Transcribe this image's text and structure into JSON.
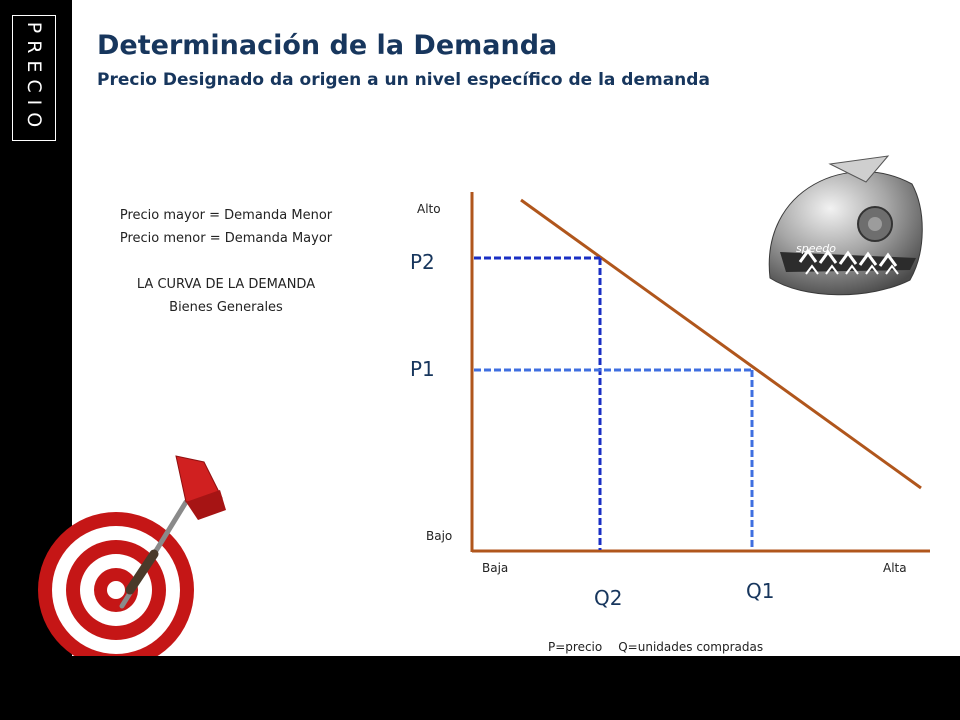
{
  "sidebar": {
    "section_tag": "PRECIO"
  },
  "header": {
    "title": "Determinación de la Demanda",
    "subtitle": "Precio Designado da origen a un nivel específico de la demanda"
  },
  "notes": {
    "line1": "Precio mayor = Demanda Menor",
    "line2": "Precio menor = Demanda Mayor",
    "line3": "LA CURVA DE LA DEMANDA",
    "line4": "Bienes Generales"
  },
  "diagram": {
    "y_top_label": "Alto",
    "y_bottom_label": "Bajo",
    "x_left_label": "Baja",
    "x_right_label": "Alta",
    "p2_label": "P2",
    "p1_label": "P1",
    "q2_label": "Q2",
    "q1_label": "Q1",
    "legend_p": "P=precio",
    "legend_q": "Q=unidades compradas",
    "colors": {
      "axis": "#b0561c",
      "curve": "#b0561c",
      "p2_lines": "#1a2fc4",
      "p1_lines": "#3f6fe0"
    }
  },
  "images": {
    "cap_icon": "shark-swim-cap-icon",
    "dart_icon": "dart-target-icon",
    "cap_brand": "speedo"
  }
}
